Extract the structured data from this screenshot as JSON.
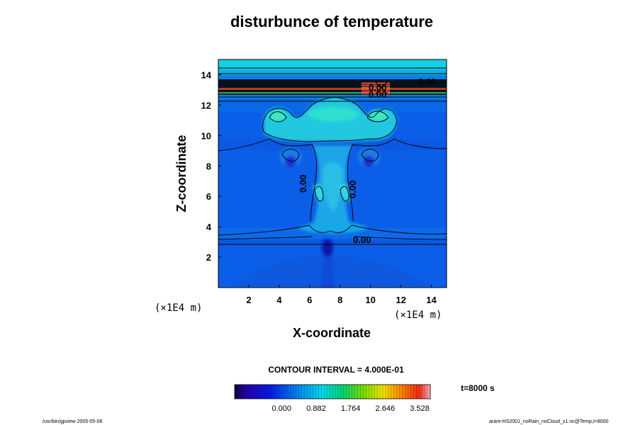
{
  "chart_data": {
    "type": "heatmap",
    "title": "disturbunce of temperature",
    "xlabel": "X-coordinate",
    "ylabel": "Z-coordinate",
    "x_unit": "(×1E4 m)",
    "y_unit": "(×1E4 m)",
    "xlim": [
      0,
      15
    ],
    "ylim": [
      0,
      15
    ],
    "x_ticks": [
      "2",
      "4",
      "6",
      "8",
      "10",
      "12",
      "14"
    ],
    "y_ticks": [
      "2",
      "4",
      "6",
      "8",
      "10",
      "12",
      "14"
    ],
    "contour_labels": [
      "0.00",
      "0.00",
      "0.00",
      "0.00",
      "0.00",
      "0.00"
    ],
    "contour_interval_text": "CONTOUR INTERVAL = 4.000E-01",
    "time_text": "t=8000 s",
    "colorbar_ticks": [
      "0.000",
      "0.882",
      "1.764",
      "2.646",
      "3.528"
    ],
    "colorbar_range": [
      -1.2,
      3.8
    ],
    "footer_left": "/usr/bin/gpview 2005-05-08",
    "footer_right": "arare-HS2001_noRain_noCloud_z1.nc@Temp,t=8000"
  }
}
